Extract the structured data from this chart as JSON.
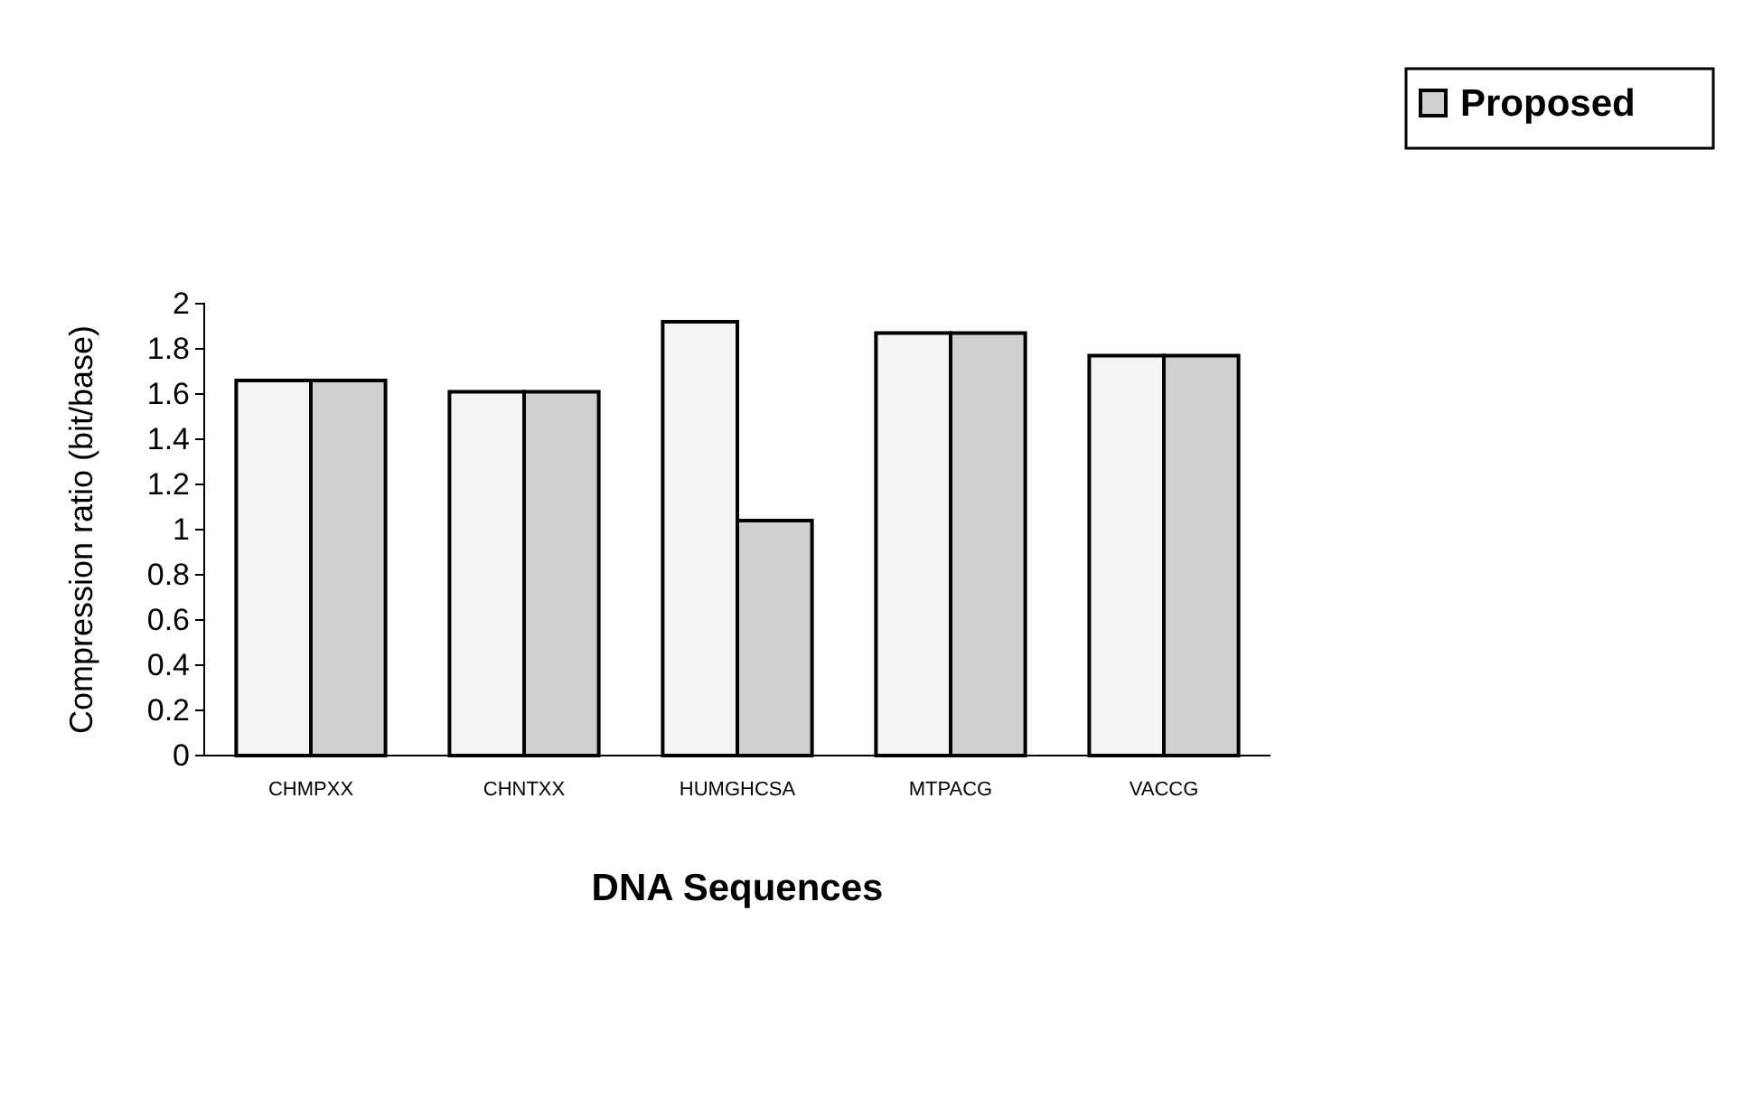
{
  "chart_data": {
    "type": "bar",
    "xlabel": "DNA Sequences",
    "ylabel": "Compression ratio (bit/base)",
    "categories": [
      "CHMPXX",
      "CHNTXX",
      "HUMGHCSA",
      "MTPACG",
      "VACCG"
    ],
    "series": [
      {
        "color": "#f4f4f4",
        "values": [
          1.66,
          1.61,
          1.92,
          1.87,
          1.77
        ]
      },
      {
        "name": "Proposed",
        "color": "#d0d0d0",
        "values": [
          1.66,
          1.61,
          1.04,
          1.87,
          1.77
        ]
      }
    ],
    "ylim": [
      0,
      2
    ],
    "yticks": [
      0,
      0.2,
      0.4,
      0.6,
      0.8,
      1,
      1.2,
      1.4,
      1.6,
      1.8,
      2
    ],
    "grid": false,
    "legend": "top right"
  }
}
